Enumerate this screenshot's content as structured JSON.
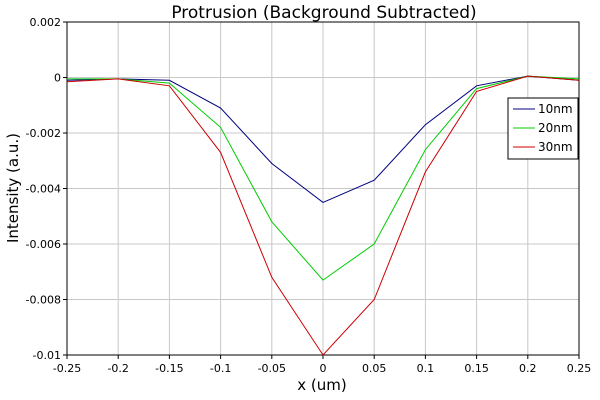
{
  "chart_data": {
    "type": "line",
    "title": "Protrusion (Background Subtracted)",
    "xlabel": "x (um)",
    "ylabel": "Intensity (a.u.)",
    "xlim": [
      -0.25,
      0.25
    ],
    "ylim": [
      -0.01,
      0.002
    ],
    "x": [
      -0.25,
      -0.2,
      -0.15,
      -0.1,
      -0.05,
      0,
      0.05,
      0.1,
      0.15,
      0.2,
      0.25
    ],
    "x_ticks": [
      -0.25,
      -0.2,
      -0.15,
      -0.1,
      -0.05,
      0,
      0.05,
      0.1,
      0.15,
      0.2,
      0.25
    ],
    "x_tick_labels": [
      "-0.25",
      "-0.2",
      "-0.15",
      "-0.1",
      "-0.05",
      "0",
      "0.05",
      "0.1",
      "0.15",
      "0.2",
      "0.25"
    ],
    "y_ticks": [
      0.002,
      0,
      -0.002,
      -0.004,
      -0.006,
      -0.008,
      -0.01
    ],
    "y_tick_labels": [
      "0.002",
      "0",
      "-0.002",
      "-0.004",
      "-0.006",
      "-0.008",
      "-0.01"
    ],
    "grid": true,
    "legend_position": "top-right",
    "series": [
      {
        "name": "10nm",
        "color": "#000080",
        "values": [
          -0.0001,
          -5e-05,
          -0.0001,
          -0.0011,
          -0.0031,
          -0.0045,
          -0.0037,
          -0.0017,
          -0.0003,
          5e-05,
          -0.0001
        ]
      },
      {
        "name": "20nm",
        "color": "#00cc00",
        "values": [
          -5e-05,
          -5e-05,
          -0.0002,
          -0.0018,
          -0.0052,
          -0.0073,
          -0.006,
          -0.0026,
          -0.0004,
          5e-05,
          -5e-05
        ]
      },
      {
        "name": "30nm",
        "color": "#cc0000",
        "values": [
          -0.00015,
          -5e-05,
          -0.0003,
          -0.0027,
          -0.0072,
          -0.01,
          -0.008,
          -0.0034,
          -0.0005,
          5e-05,
          -0.0001
        ]
      }
    ]
  }
}
